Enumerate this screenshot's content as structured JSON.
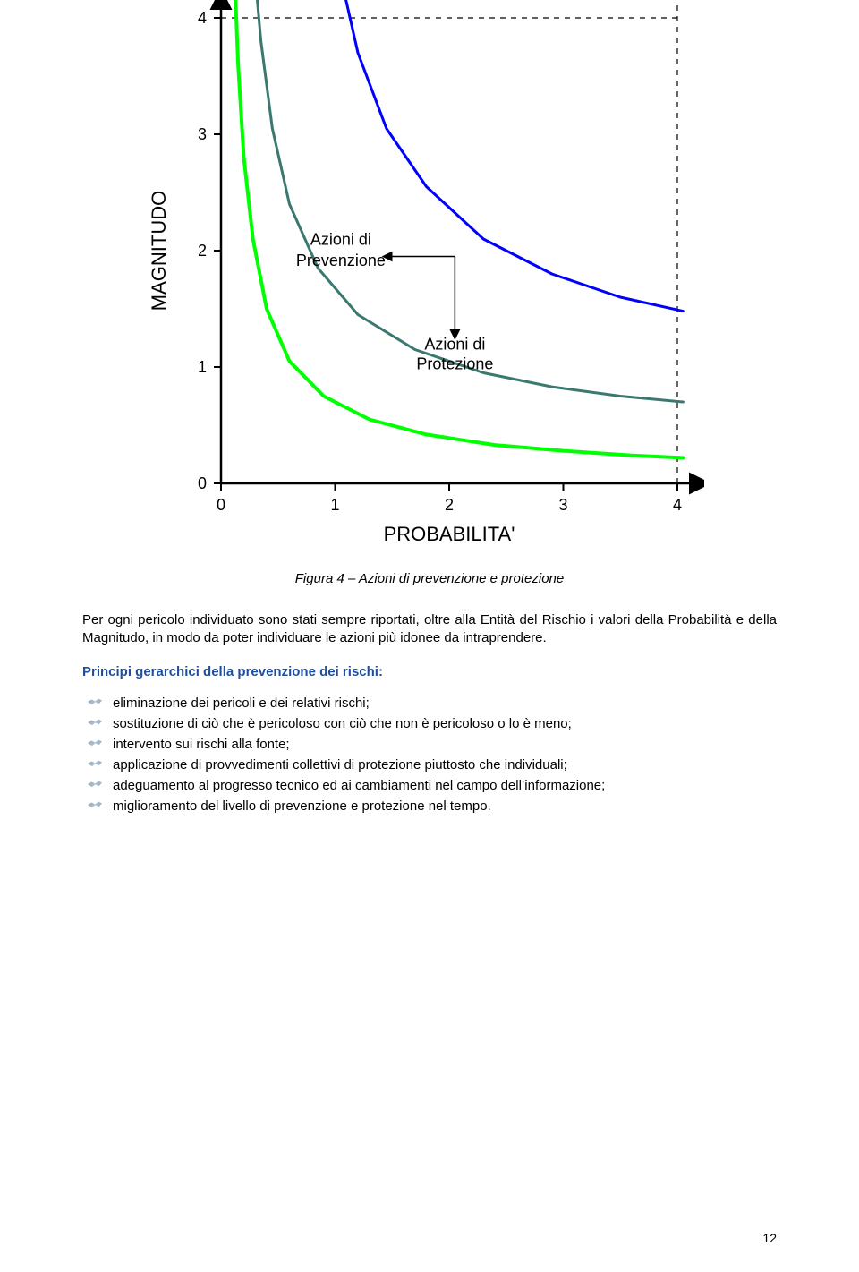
{
  "chart": {
    "type": "line",
    "x_axis_label": "PROBABILITA'",
    "y_axis_label": "MAGNITUDO",
    "x_ticks": [
      "0",
      "1",
      "2",
      "3",
      "4"
    ],
    "y_ticks": [
      "0",
      "1",
      "2",
      "3",
      "4"
    ],
    "xlim": [
      0,
      4
    ],
    "ylim": [
      0,
      4
    ],
    "axis_font_size_pt": 18,
    "label_font_size_pt": 22,
    "axis_color": "#000000",
    "background_color": "#ffffff",
    "curves": [
      {
        "name": "lower",
        "color": "#00ff00",
        "width": 4,
        "points": [
          [
            0.12,
            4.35
          ],
          [
            0.15,
            3.6
          ],
          [
            0.2,
            2.8
          ],
          [
            0.28,
            2.1
          ],
          [
            0.4,
            1.5
          ],
          [
            0.6,
            1.05
          ],
          [
            0.9,
            0.75
          ],
          [
            1.3,
            0.55
          ],
          [
            1.8,
            0.42
          ],
          [
            2.4,
            0.33
          ],
          [
            3.0,
            0.28
          ],
          [
            3.6,
            0.24
          ],
          [
            4.05,
            0.22
          ]
        ]
      },
      {
        "name": "middle",
        "color": "#3a7870",
        "width": 3,
        "points": [
          [
            0.3,
            4.35
          ],
          [
            0.35,
            3.8
          ],
          [
            0.45,
            3.05
          ],
          [
            0.6,
            2.4
          ],
          [
            0.85,
            1.85
          ],
          [
            1.2,
            1.45
          ],
          [
            1.7,
            1.15
          ],
          [
            2.3,
            0.95
          ],
          [
            2.9,
            0.83
          ],
          [
            3.5,
            0.75
          ],
          [
            4.05,
            0.7
          ]
        ]
      },
      {
        "name": "upper",
        "color": "#0000ff",
        "width": 3,
        "points": [
          [
            1.05,
            4.35
          ],
          [
            1.2,
            3.7
          ],
          [
            1.45,
            3.05
          ],
          [
            1.8,
            2.55
          ],
          [
            2.3,
            2.1
          ],
          [
            2.9,
            1.8
          ],
          [
            3.5,
            1.6
          ],
          [
            4.05,
            1.48
          ]
        ]
      }
    ],
    "annotations": {
      "prevenzione": {
        "line1": "Azioni di",
        "line2": "Prevenzione",
        "font_size_ann": 18
      },
      "protezione": {
        "line1": "Azioni di",
        "line2": "Protezione",
        "font_size_ann": 18
      }
    },
    "dashed_lines": {
      "color": "#000000",
      "dash": "6 6"
    }
  },
  "caption": "Figura 4 – Azioni di prevenzione e protezione",
  "paragraph": "Per ogni pericolo individuato sono stati sempre riportati, oltre alla Entità del Rischio i valori della Probabilità e della Magnitudo, in modo da poter individuare le azioni più idonee da intraprendere.",
  "heading": "Principi gerarchici della prevenzione dei rischi:",
  "bullets": [
    "eliminazione dei pericoli e dei relativi rischi;",
    "sostituzione di ciò che è pericoloso con ciò che non è pericoloso o lo è meno;",
    "intervento sui rischi alla fonte;",
    "applicazione di provvedimenti collettivi di protezione piuttosto che individuali;",
    "adeguamento al progresso tecnico ed ai cambiamenti nel campo dell’informazione;",
    "miglioramento del livello di prevenzione e protezione nel tempo."
  ],
  "page_number": "12"
}
